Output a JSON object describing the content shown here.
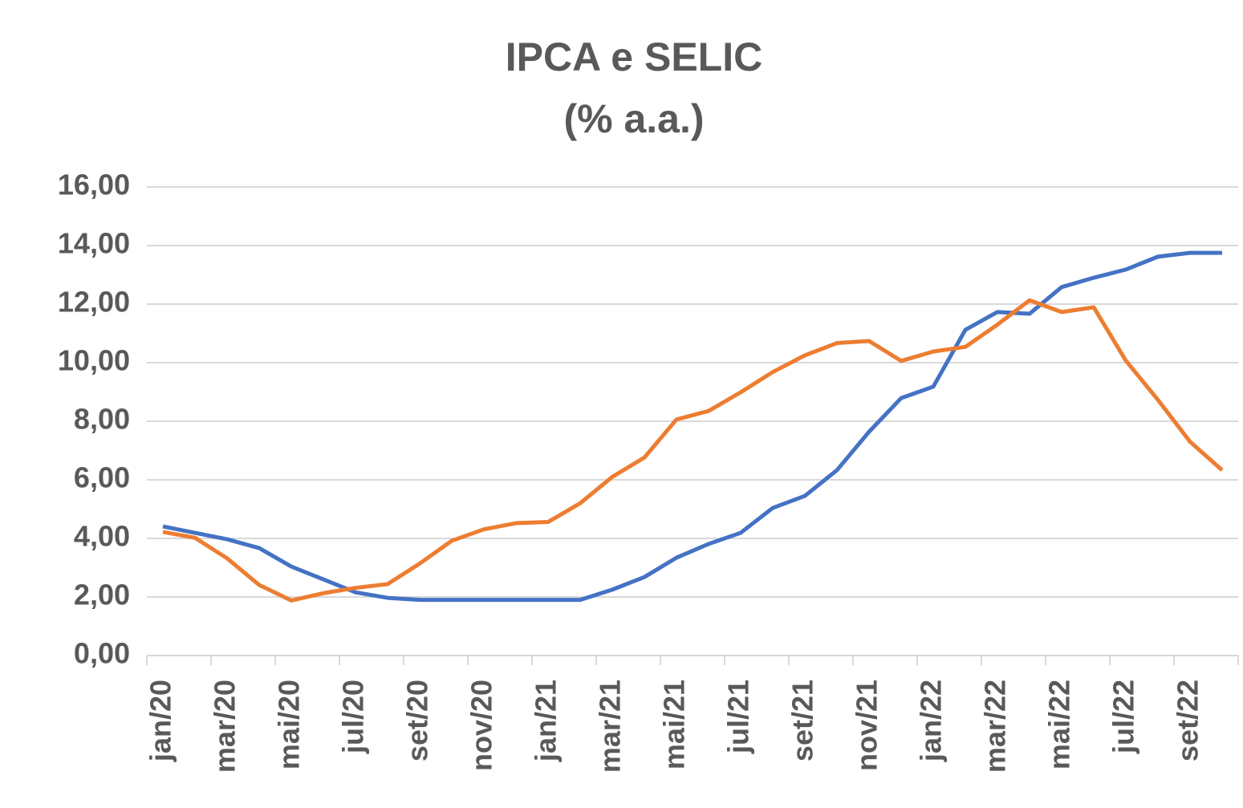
{
  "chart_data": {
    "type": "line",
    "title": "IPCA e SELIC",
    "subtitle": "(% a.a.)",
    "categories": [
      "jan/20",
      null,
      "mar/20",
      null,
      "mai/20",
      null,
      "jul/20",
      null,
      "set/20",
      null,
      "nov/20",
      null,
      "jan/21",
      null,
      "mar/21",
      null,
      "mai/21",
      null,
      "jul/21",
      null,
      "set/21",
      null,
      "nov/21",
      null,
      "jan/22",
      null,
      "mar/22",
      null,
      "mai/22",
      null,
      "jul/22",
      null,
      "set/22",
      null
    ],
    "series": [
      {
        "color": "#4472c4",
        "values": [
          4.41,
          4.19,
          3.97,
          3.67,
          3.04,
          2.6,
          2.16,
          1.97,
          1.9,
          1.9,
          1.9,
          1.9,
          1.9,
          1.9,
          2.25,
          2.68,
          3.34,
          3.81,
          4.19,
          5.04,
          5.45,
          6.33,
          7.64,
          8.79,
          9.18,
          11.12,
          11.73,
          11.67,
          12.58,
          12.9,
          13.18,
          13.62,
          13.75,
          13.75
        ]
      },
      {
        "color": "#ed7d31",
        "values": [
          4.22,
          4.02,
          3.32,
          2.41,
          1.88,
          2.13,
          2.31,
          2.44,
          3.14,
          3.92,
          4.31,
          4.52,
          4.56,
          5.2,
          6.1,
          6.76,
          8.06,
          8.35,
          8.99,
          9.68,
          10.25,
          10.67,
          10.74,
          10.06,
          10.38,
          10.54,
          11.3,
          12.13,
          11.73,
          11.89,
          10.07,
          8.73,
          7.3,
          6.33
        ]
      }
    ],
    "ylim": [
      0,
      16
    ],
    "yticks": [
      {
        "value": 0,
        "label": "0,00"
      },
      {
        "value": 2,
        "label": "2,00"
      },
      {
        "value": 4,
        "label": "4,00"
      },
      {
        "value": 6,
        "label": "6,00"
      },
      {
        "value": 8,
        "label": "8,00"
      },
      {
        "value": 10,
        "label": "10,00"
      },
      {
        "value": 12,
        "label": "12,00"
      },
      {
        "value": 14,
        "label": "14,00"
      },
      {
        "value": 16,
        "label": "16,00"
      }
    ],
    "grid": true
  }
}
